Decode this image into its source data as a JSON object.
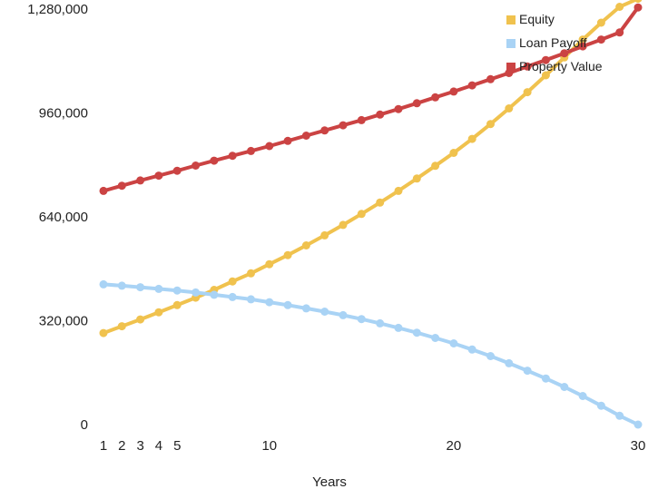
{
  "chart_data": {
    "type": "line",
    "title": "",
    "xlabel": "Years",
    "ylabel": "",
    "xlim": [
      1,
      30
    ],
    "ylim": [
      0,
      1280000
    ],
    "x_ticks": [
      1,
      2,
      3,
      4,
      5,
      10,
      20,
      30
    ],
    "y_ticks": [
      0,
      320000,
      640000,
      960000,
      1280000
    ],
    "y_tick_labels": [
      "0",
      "320,000",
      "640,000",
      "960,000",
      "1,280,000"
    ],
    "grid": false,
    "legend_position": "top-right",
    "x": [
      1,
      2,
      3,
      4,
      5,
      6,
      7,
      8,
      9,
      10,
      11,
      12,
      13,
      14,
      15,
      16,
      17,
      18,
      19,
      20,
      21,
      22,
      23,
      24,
      25,
      26,
      27,
      28,
      29,
      30
    ],
    "series": [
      {
        "name": "Equity",
        "color": "#F0C24E",
        "values": [
          282000,
          303000,
          324000,
          346000,
          368000,
          391000,
          415000,
          441000,
          466000,
          494000,
          522000,
          552000,
          583000,
          615000,
          649000,
          684000,
          720000,
          758000,
          797000,
          837000,
          880000,
          926000,
          974000,
          1024000,
          1076000,
          1131000,
          1186000,
          1238000,
          1287000,
          1312000
        ]
      },
      {
        "name": "Loan Payoff",
        "color": "#A9D3F5",
        "values": [
          432000,
          428000,
          423000,
          418000,
          413000,
          407000,
          400000,
          393000,
          386000,
          377000,
          368000,
          358000,
          348000,
          337000,
          325000,
          312000,
          298000,
          283000,
          267000,
          250000,
          231000,
          211000,
          189000,
          166000,
          142000,
          116000,
          88000,
          58000,
          27000,
          0
        ]
      },
      {
        "name": "Property Value",
        "color": "#CB4343",
        "values": [
          720000,
          736000,
          752000,
          767000,
          782000,
          798000,
          813000,
          828000,
          843000,
          858000,
          874000,
          890000,
          906000,
          922000,
          938000,
          955000,
          972000,
          990000,
          1008000,
          1026000,
          1045000,
          1064000,
          1083000,
          1103000,
          1123000,
          1144000,
          1165000,
          1186000,
          1208000,
          1285000
        ]
      }
    ]
  }
}
